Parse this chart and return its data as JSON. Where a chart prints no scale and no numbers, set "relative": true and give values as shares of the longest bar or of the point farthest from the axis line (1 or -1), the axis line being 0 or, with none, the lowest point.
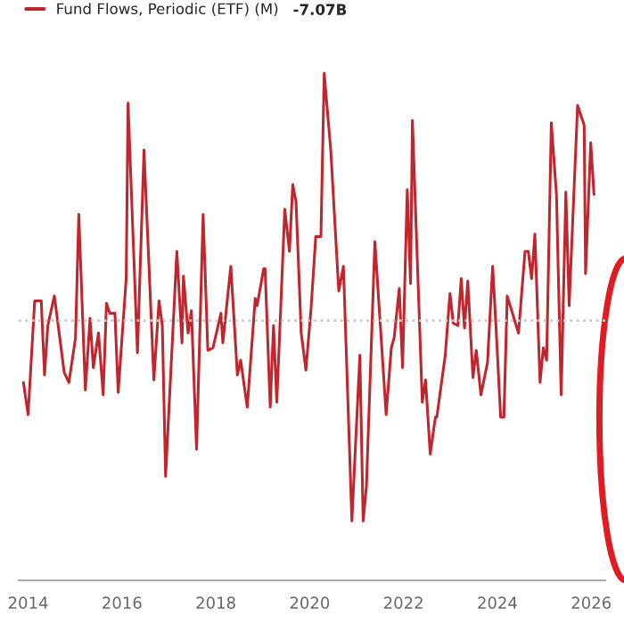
{
  "chart_data": {
    "type": "line",
    "relative": true,
    "series": [
      {
        "name": "Fund Flows, Periodic (ETF) (M)",
        "color": "#c0262d",
        "x": [
          2013.9,
          2014.0,
          2014.14,
          2014.28,
          2014.35,
          2014.42,
          2014.56,
          2014.77,
          2014.87,
          2015.01,
          2015.08,
          2015.22,
          2015.32,
          2015.39,
          2015.5,
          2015.6,
          2015.67,
          2015.74,
          2015.85,
          2015.92,
          2016.09,
          2016.13,
          2016.33,
          2016.47,
          2016.68,
          2016.79,
          2016.86,
          2016.93,
          2017.17,
          2017.28,
          2017.31,
          2017.41,
          2017.48,
          2017.59,
          2017.73,
          2017.83,
          2017.94,
          2018.11,
          2018.15,
          2018.32,
          2018.46,
          2018.53,
          2018.67,
          2018.84,
          2018.88,
          2019.02,
          2019.05,
          2019.16,
          2019.23,
          2019.3,
          2019.47,
          2019.57,
          2019.64,
          2019.71,
          2019.82,
          2019.92,
          2020.03,
          2020.13,
          2020.24,
          2020.31,
          2020.45,
          2020.62,
          2020.72,
          2020.9,
          2021.07,
          2021.14,
          2021.21,
          2021.39,
          2021.63,
          2021.74,
          2021.8,
          2021.91,
          2021.98,
          2022.08,
          2022.15,
          2022.19,
          2022.4,
          2022.47,
          2022.57,
          2022.68,
          2022.71,
          2022.89,
          2022.99,
          2023.06,
          2023.16,
          2023.23,
          2023.3,
          2023.37,
          2023.48,
          2023.55,
          2023.65,
          2023.79,
          2023.9,
          2023.97,
          2024.07,
          2024.14,
          2024.21,
          2024.45,
          2024.59,
          2024.66,
          2024.73,
          2024.8,
          2024.91,
          2024.98,
          2025.05,
          2025.15,
          2025.26,
          2025.36,
          2025.46,
          2025.53,
          2025.71,
          2025.85,
          2025.88,
          2025.99,
          2026.06
        ],
        "values": [
          -0.25,
          -0.38,
          0.08,
          0.08,
          -0.22,
          -0.02,
          0.1,
          -0.21,
          -0.25,
          -0.07,
          0.43,
          -0.28,
          0.01,
          -0.19,
          -0.05,
          -0.3,
          0.07,
          0.03,
          0.03,
          -0.29,
          0.17,
          0.88,
          -0.13,
          0.69,
          -0.24,
          0.08,
          -0.02,
          -0.63,
          0.28,
          -0.09,
          0.18,
          -0.05,
          0.04,
          -0.52,
          0.43,
          -0.12,
          -0.11,
          0.03,
          -0.09,
          0.22,
          -0.22,
          -0.16,
          -0.35,
          0.09,
          0.06,
          0.21,
          0.21,
          -0.35,
          -0.02,
          -0.33,
          0.45,
          0.28,
          0.55,
          0.48,
          -0.05,
          -0.2,
          0.05,
          0.34,
          0.34,
          1.0,
          0.69,
          0.12,
          0.22,
          -0.81,
          -0.14,
          -0.81,
          -0.67,
          0.32,
          -0.38,
          -0.11,
          -0.07,
          0.13,
          -0.19,
          0.53,
          0.15,
          0.81,
          -0.33,
          -0.24,
          -0.54,
          -0.39,
          -0.39,
          -0.14,
          0.11,
          -0.01,
          -0.02,
          0.17,
          -0.03,
          0.16,
          -0.23,
          -0.12,
          -0.3,
          -0.17,
          0.22,
          -0.02,
          -0.39,
          -0.39,
          0.1,
          -0.05,
          0.28,
          0.28,
          0.17,
          0.35,
          -0.25,
          -0.11,
          -0.16,
          0.8,
          0.51,
          -0.3,
          0.52,
          0.06,
          0.87,
          0.79,
          0.19,
          0.72,
          0.51
        ]
      }
    ],
    "xlim": [
      2013.8,
      2026.3
    ],
    "xticks": [
      2014,
      2016,
      2018,
      2020,
      2022,
      2024,
      2026
    ],
    "ref_lines": [
      {
        "axis": "y",
        "value": 0,
        "color": "#c8c8c8",
        "line_style": "dotted"
      }
    ],
    "annotations": [
      "-7.07B"
    ],
    "legend": "top left",
    "grid": false,
    "marker": "none",
    "line_style": "solid"
  }
}
